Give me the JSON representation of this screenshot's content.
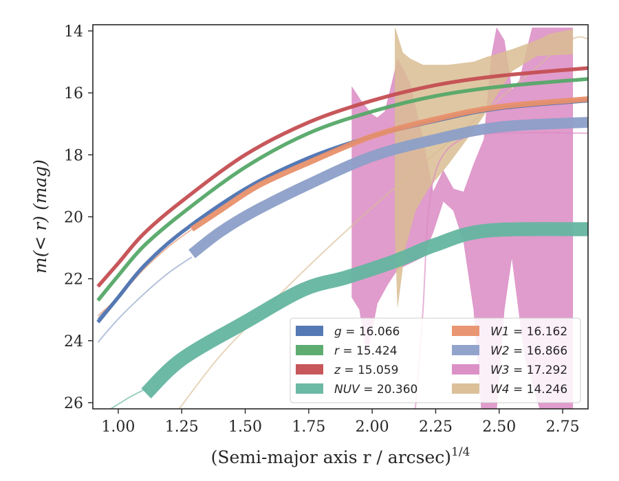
{
  "chart_data": {
    "type": "line",
    "xlabel": "(Semi-major axis r / arcsec)",
    "xlabel_exponent": "1/4",
    "ylabel": "m(< r) (mag)",
    "xlim": [
      0.9,
      2.85
    ],
    "ylim": [
      26.2,
      13.8
    ],
    "y_inverted": true,
    "x_ticks": [
      "1.00",
      "1.25",
      "1.50",
      "1.75",
      "2.00",
      "2.25",
      "2.50",
      "2.75"
    ],
    "y_ticks": [
      "14",
      "16",
      "18",
      "20",
      "22",
      "24",
      "26"
    ],
    "grid": false,
    "legend_position": "lower-right",
    "series": [
      {
        "name": "g = 16.066",
        "band": "g",
        "value": "16.066",
        "color": "#4c72b0",
        "band_width": 0.12,
        "points": [
          [
            0.92,
            23.4
          ],
          [
            1.0,
            22.6
          ],
          [
            1.1,
            21.6
          ],
          [
            1.25,
            20.5
          ],
          [
            1.5,
            19.1
          ],
          [
            1.75,
            18.1
          ],
          [
            2.0,
            17.4
          ],
          [
            2.25,
            16.9
          ],
          [
            2.5,
            16.5
          ],
          [
            2.85,
            16.25
          ]
        ],
        "faint": [
          [
            0.92,
            23.3
          ],
          [
            0.95,
            23.0
          ]
        ]
      },
      {
        "name": "r = 15.424",
        "band": "r",
        "value": "15.424",
        "color": "#55a868",
        "band_width": 0.12,
        "points": [
          [
            0.92,
            22.7
          ],
          [
            1.0,
            21.9
          ],
          [
            1.1,
            20.95
          ],
          [
            1.25,
            19.9
          ],
          [
            1.5,
            18.4
          ],
          [
            1.75,
            17.3
          ],
          [
            2.0,
            16.6
          ],
          [
            2.25,
            16.1
          ],
          [
            2.5,
            15.8
          ],
          [
            2.85,
            15.55
          ]
        ],
        "faint": []
      },
      {
        "name": "z = 15.059",
        "band": "z",
        "value": "15.059",
        "color": "#c44e52",
        "band_width": 0.12,
        "points": [
          [
            0.92,
            22.25
          ],
          [
            1.0,
            21.5
          ],
          [
            1.1,
            20.55
          ],
          [
            1.25,
            19.5
          ],
          [
            1.5,
            18.0
          ],
          [
            1.75,
            16.95
          ],
          [
            2.0,
            16.25
          ],
          [
            2.25,
            15.75
          ],
          [
            2.5,
            15.45
          ],
          [
            2.85,
            15.2
          ]
        ],
        "faint": []
      },
      {
        "name": "NUV = 20.360",
        "band": "NUV",
        "value": "20.360",
        "color": "#64b5a0",
        "band_width": 0.45,
        "points": [
          [
            1.11,
            25.7
          ],
          [
            1.25,
            24.6
          ],
          [
            1.5,
            23.4
          ],
          [
            1.73,
            22.35
          ],
          [
            1.9,
            21.95
          ],
          [
            2.1,
            21.4
          ],
          [
            2.25,
            20.9
          ],
          [
            2.45,
            20.45
          ],
          [
            2.85,
            20.4
          ]
        ],
        "faint": [
          [
            0.95,
            26.3
          ],
          [
            1.0,
            26.05
          ],
          [
            1.05,
            25.8
          ],
          [
            1.11,
            25.55
          ]
        ]
      },
      {
        "name": "W1 = 16.162",
        "band": "W1",
        "value": "16.162",
        "color": "#e8906c",
        "band_width": 0.18,
        "points": [
          [
            1.29,
            20.4
          ],
          [
            1.4,
            19.8
          ],
          [
            1.55,
            19.0
          ],
          [
            1.75,
            18.25
          ],
          [
            2.0,
            17.4
          ],
          [
            2.25,
            16.85
          ],
          [
            2.5,
            16.45
          ],
          [
            2.85,
            16.2
          ]
        ],
        "faint": [
          [
            0.92,
            23.2
          ],
          [
            1.0,
            22.6
          ],
          [
            1.1,
            21.7
          ],
          [
            1.2,
            20.95
          ],
          [
            1.29,
            20.4
          ]
        ]
      },
      {
        "name": "W2 = 16.866",
        "band": "W2",
        "value": "16.866",
        "color": "#8c9fc8",
        "band_width": 0.35,
        "points": [
          [
            1.29,
            21.2
          ],
          [
            1.4,
            20.5
          ],
          [
            1.53,
            19.85
          ],
          [
            1.75,
            18.95
          ],
          [
            2.0,
            18.05
          ],
          [
            2.25,
            17.5
          ],
          [
            2.5,
            17.1
          ],
          [
            2.85,
            16.95
          ]
        ],
        "faint": [
          [
            0.92,
            24.05
          ],
          [
            1.0,
            23.3
          ],
          [
            1.1,
            22.5
          ],
          [
            1.2,
            21.8
          ],
          [
            1.29,
            21.3
          ]
        ]
      },
      {
        "name": "W3 = 17.292",
        "band": "W3",
        "value": "17.292",
        "color": "#da8bc3",
        "band_width": 0,
        "points": [],
        "faint": [
          [
            2.17,
            26.2
          ],
          [
            2.2,
            23.0
          ],
          [
            2.22,
            20.0
          ],
          [
            2.26,
            18.3
          ],
          [
            2.35,
            17.5
          ],
          [
            2.5,
            17.3
          ],
          [
            2.85,
            17.3
          ]
        ]
      },
      {
        "name": "W4 = 14.246",
        "band": "W4",
        "value": "14.246",
        "color": "#d9bd93",
        "band_width": 0,
        "points": [],
        "faint": [
          [
            1.24,
            26.2
          ],
          [
            1.4,
            24.5
          ],
          [
            1.6,
            22.8
          ],
          [
            1.8,
            21.2
          ],
          [
            2.0,
            19.7
          ],
          [
            2.2,
            18.3
          ],
          [
            2.4,
            16.9
          ],
          [
            2.6,
            15.5
          ],
          [
            2.78,
            14.3
          ],
          [
            2.85,
            14.25
          ]
        ]
      }
    ],
    "regions": [
      {
        "band": "W3",
        "color": "#da8bc3",
        "upper": [
          [
            1.92,
            15.8
          ],
          [
            1.96,
            16.3
          ],
          [
            2.0,
            16.7
          ],
          [
            2.02,
            16.8
          ],
          [
            2.05,
            16.6
          ],
          [
            2.08,
            15.6
          ],
          [
            2.1,
            14.9
          ],
          [
            2.12,
            15.2
          ],
          [
            2.15,
            15.7
          ],
          [
            2.2,
            17.5
          ],
          [
            2.24,
            19.2
          ],
          [
            2.28,
            18.5
          ],
          [
            2.32,
            19.1
          ],
          [
            2.36,
            19.2
          ],
          [
            2.4,
            18.3
          ],
          [
            2.44,
            17.5
          ],
          [
            2.47,
            14.8
          ],
          [
            2.49,
            13.9
          ],
          [
            2.52,
            14.3
          ],
          [
            2.55,
            15.9
          ],
          [
            2.58,
            15.6
          ],
          [
            2.6,
            14.9
          ],
          [
            2.63,
            13.9
          ],
          [
            2.7,
            13.9
          ],
          [
            2.79,
            13.9
          ]
        ],
        "lower": [
          [
            2.79,
            26.2
          ],
          [
            2.66,
            26.2
          ],
          [
            2.6,
            24.5
          ],
          [
            2.55,
            21.3
          ],
          [
            2.52,
            23.0
          ],
          [
            2.49,
            26.2
          ],
          [
            2.43,
            26.2
          ],
          [
            2.4,
            23.0
          ],
          [
            2.36,
            20.8
          ],
          [
            2.32,
            19.8
          ],
          [
            2.28,
            19.5
          ],
          [
            2.24,
            20.5
          ],
          [
            2.2,
            21.3
          ],
          [
            2.15,
            21.5
          ],
          [
            2.1,
            21.7
          ],
          [
            2.06,
            22.2
          ],
          [
            2.02,
            22.8
          ],
          [
            1.98,
            24.5
          ],
          [
            1.95,
            23.0
          ],
          [
            1.92,
            22.6
          ]
        ]
      },
      {
        "band": "W4",
        "color": "#d9bd93",
        "upper": [
          [
            2.09,
            13.9
          ],
          [
            2.12,
            14.7
          ],
          [
            2.15,
            14.9
          ],
          [
            2.2,
            15.1
          ],
          [
            2.3,
            15.1
          ],
          [
            2.4,
            15.0
          ],
          [
            2.45,
            14.85
          ],
          [
            2.55,
            14.6
          ],
          [
            2.65,
            14.3
          ],
          [
            2.7,
            14.1
          ],
          [
            2.79,
            13.95
          ]
        ],
        "lower": [
          [
            2.79,
            14.75
          ],
          [
            2.65,
            14.8
          ],
          [
            2.55,
            15.3
          ],
          [
            2.45,
            16.6
          ],
          [
            2.4,
            17.2
          ],
          [
            2.3,
            18.3
          ],
          [
            2.22,
            19.1
          ],
          [
            2.17,
            19.8
          ],
          [
            2.13,
            21.0
          ],
          [
            2.1,
            22.9
          ],
          [
            2.09,
            20.5
          ]
        ]
      }
    ],
    "legend": {
      "left": [
        {
          "band": "g",
          "value": "16.066",
          "color": "#4c72b0"
        },
        {
          "band": "r",
          "value": "15.424",
          "color": "#55a868"
        },
        {
          "band": "z",
          "value": "15.059",
          "color": "#c44e52"
        },
        {
          "band": "NUV",
          "value": "20.360",
          "color": "#64b5a0"
        }
      ],
      "right": [
        {
          "band": "W1",
          "value": "16.162",
          "color": "#e8906c"
        },
        {
          "band": "W2",
          "value": "16.866",
          "color": "#8c9fc8"
        },
        {
          "band": "W3",
          "value": "17.292",
          "color": "#da8bc3"
        },
        {
          "band": "W4",
          "value": "14.246",
          "color": "#d9bd93"
        }
      ]
    }
  }
}
